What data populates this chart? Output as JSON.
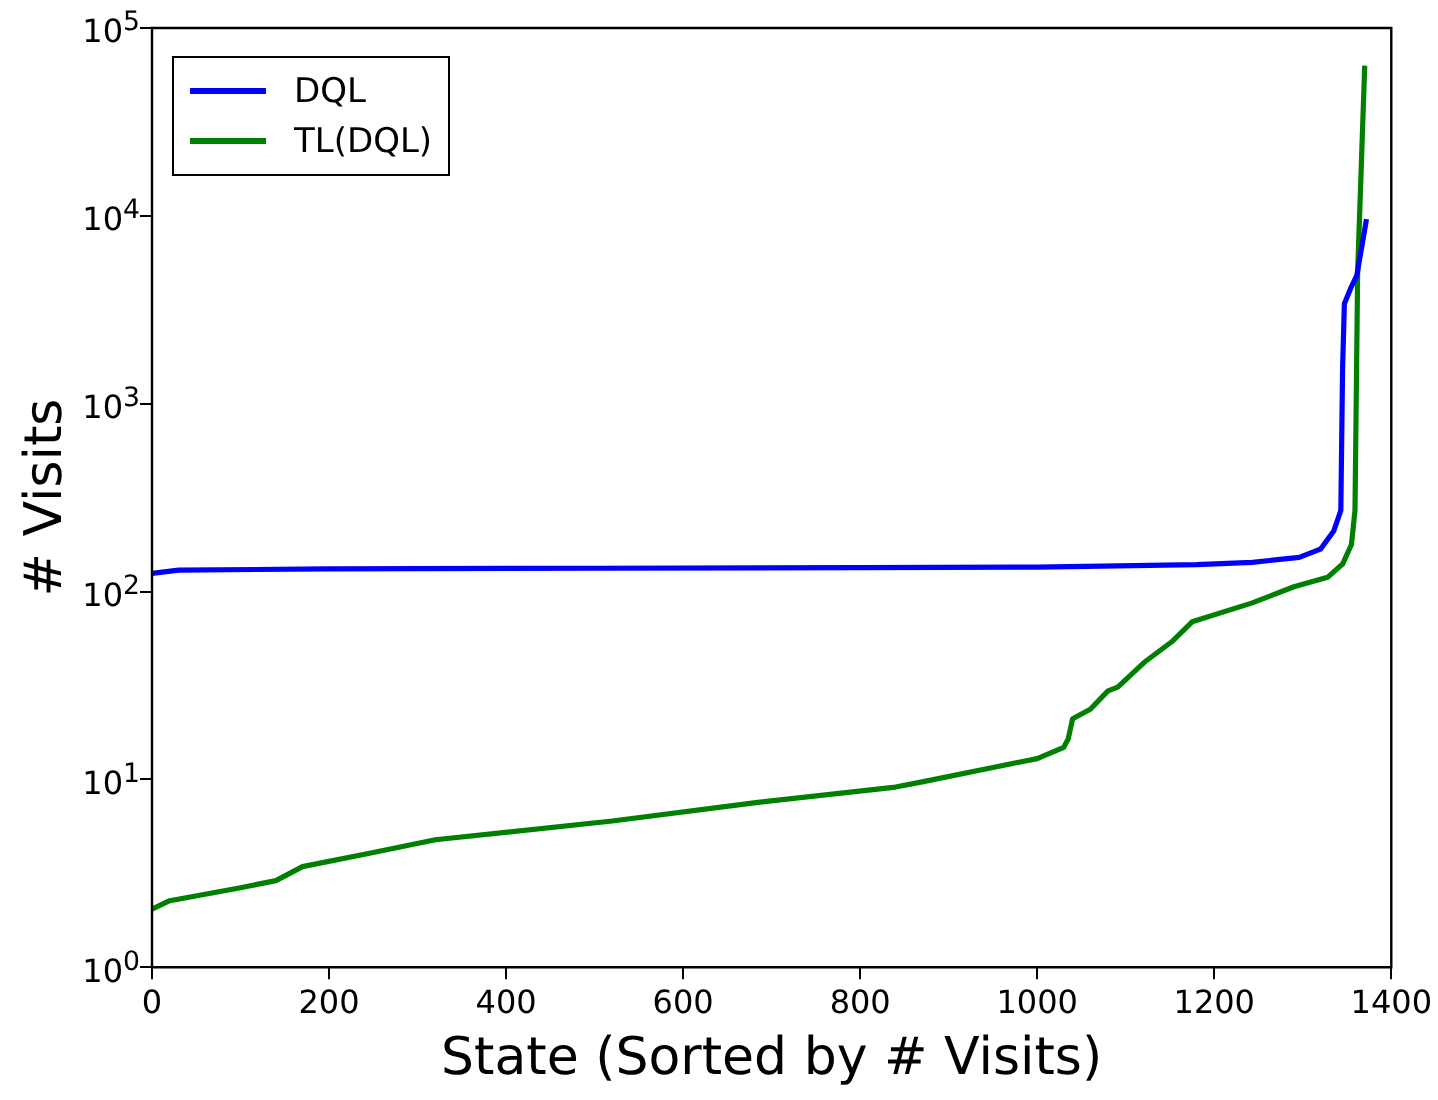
{
  "chart_data": {
    "type": "line",
    "xlabel": "State (Sorted by # Visits)",
    "ylabel": "# Visits",
    "log": "y",
    "grid": false,
    "legend": "top left",
    "marker": "none",
    "line_style": "solid",
    "xlim": [
      0,
      1400
    ],
    "xticks": [
      0,
      200,
      400,
      600,
      800,
      1000,
      1200,
      1400
    ],
    "ylim": [
      1,
      100000
    ],
    "yticks": [
      {
        "value": 1,
        "label": "10$^{0}$"
      },
      {
        "value": 10,
        "label": "10$^{1}$"
      },
      {
        "value": 100,
        "label": "10$^{2}$"
      },
      {
        "value": 1000,
        "label": "10$^{3}$"
      },
      {
        "value": 10000,
        "label": "10$^{4}$"
      },
      {
        "value": 100000,
        "label": "10$^{5}$"
      }
    ],
    "series": [
      {
        "name": "DQL",
        "color": "#0000ff",
        "x": [
          0,
          30,
          200,
          500,
          800,
          1000,
          1091,
          1180,
          1243,
          1296,
          1320,
          1335,
          1343,
          1345,
          1347,
          1355,
          1361,
          1372
        ],
        "values": [
          125,
          130,
          132,
          133,
          134,
          135,
          137,
          139,
          143,
          152,
          168,
          210,
          270,
          1550,
          3400,
          4200,
          4800,
          9600
        ]
      },
      {
        "name": "TL(DQL)",
        "color": "#008000",
        "x": [
          0,
          20,
          100,
          140,
          170,
          250,
          320,
          520,
          680,
          840,
          870,
          1000,
          1030,
          1035,
          1040,
          1060,
          1080,
          1091,
          1121,
          1152,
          1175,
          1243,
          1290,
          1328,
          1345,
          1355,
          1359,
          1362,
          1370
        ],
        "values": [
          2.04,
          2.26,
          2.65,
          2.89,
          3.43,
          4.08,
          4.77,
          6.0,
          7.5,
          9.1,
          9.7,
          12.9,
          14.8,
          16.4,
          21,
          23.6,
          29.6,
          31,
          42,
          54,
          69,
          87,
          106,
          119,
          140,
          178,
          270,
          5000,
          63000
        ]
      }
    ]
  }
}
